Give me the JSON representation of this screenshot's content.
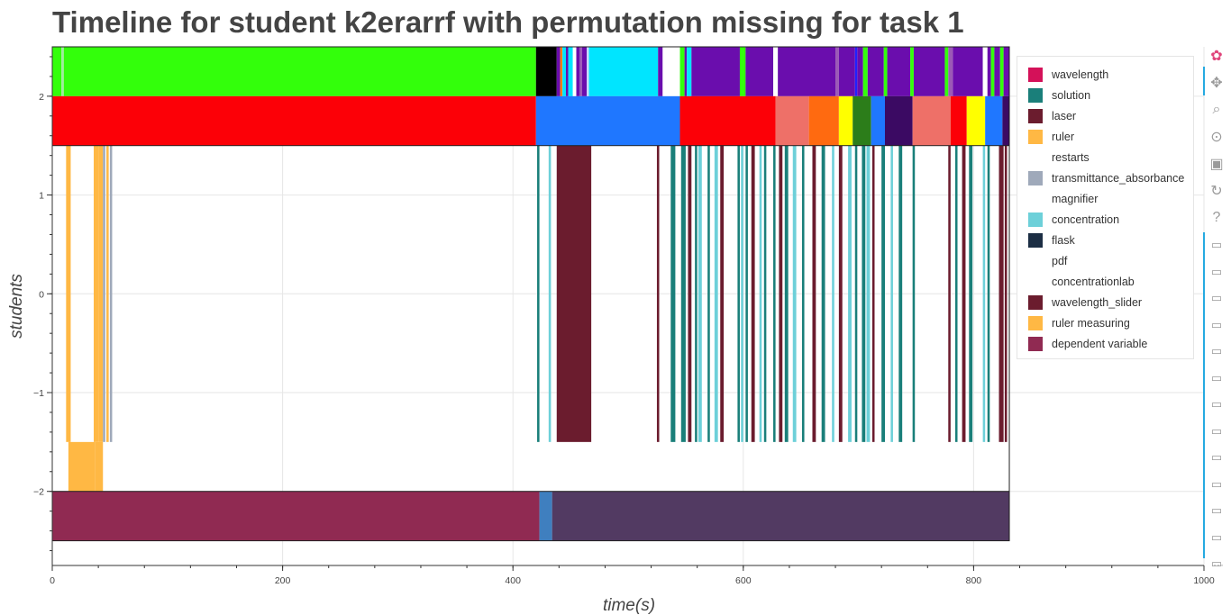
{
  "title": "Timeline for student k2erarrf with permutation missing for task 1",
  "chart_data": {
    "type": "timeline",
    "xlabel": "time(s)",
    "ylabel": "students",
    "xlim": [
      0,
      1000
    ],
    "ylim": [
      -2.75,
      2.5
    ],
    "x_ticks": [
      0,
      200,
      400,
      600,
      800,
      1000
    ],
    "y_ticks": [
      2,
      1,
      0,
      -1,
      -2
    ],
    "x_tick_labels": [
      "0",
      "200",
      "400",
      "600",
      "800",
      "1000"
    ],
    "y_tick_labels": [
      "2",
      "1",
      "0",
      "−1",
      "−2"
    ],
    "grid": true,
    "legend_position": "top-right",
    "legend": [
      {
        "label": "wavelength",
        "color": "#d41159"
      },
      {
        "label": "solution",
        "color": "#1a7f7a"
      },
      {
        "label": "laser",
        "color": "#6b1c2e"
      },
      {
        "label": "ruler",
        "color": "#ffb844"
      },
      {
        "label": "restarts",
        "color": "#ffffff"
      },
      {
        "label": "transmittance_absorbance",
        "color": "#9fa9ba"
      },
      {
        "label": "magnifier",
        "color": "#ffffff"
      },
      {
        "label": "concentration",
        "color": "#6dd0d9"
      },
      {
        "label": "flask",
        "color": "#1c2e44"
      },
      {
        "label": "pdf",
        "color": "#ffffff"
      },
      {
        "label": "concentrationlab",
        "color": "#ffffff"
      },
      {
        "label": "wavelength_slider",
        "color": "#6b1c2e"
      },
      {
        "label": "ruler measuring",
        "color": "#ffb844"
      },
      {
        "label": "dependent variable",
        "color": "#902a52"
      }
    ],
    "rows": [
      {
        "name": "top",
        "y": [
          2,
          2.5
        ],
        "segments": [
          {
            "x0": 0,
            "x1": 8,
            "color": "#33ff0b"
          },
          {
            "x0": 8,
            "x1": 10,
            "color": "#a0e8a0"
          },
          {
            "x0": 10,
            "x1": 420,
            "color": "#33ff0b"
          },
          {
            "x0": 420,
            "x1": 438,
            "color": "#000000"
          },
          {
            "x0": 438,
            "x1": 441,
            "color": "#6a0dad"
          },
          {
            "x0": 441,
            "x1": 443,
            "color": "#ff7f0e"
          },
          {
            "x0": 443,
            "x1": 446,
            "color": "#00e5ff"
          },
          {
            "x0": 446,
            "x1": 448,
            "color": "#6a0dad"
          },
          {
            "x0": 448,
            "x1": 452,
            "color": "#00e5ff"
          },
          {
            "x0": 452,
            "x1": 455,
            "color": "#ffffff"
          },
          {
            "x0": 455,
            "x1": 458,
            "color": "#6a0dad"
          },
          {
            "x0": 458,
            "x1": 460,
            "color": "#9b59b6"
          },
          {
            "x0": 460,
            "x1": 464,
            "color": "#6a0dad"
          },
          {
            "x0": 464,
            "x1": 466,
            "color": "#c8d8ff"
          },
          {
            "x0": 466,
            "x1": 526,
            "color": "#00e5ff"
          },
          {
            "x0": 526,
            "x1": 530,
            "color": "#6a0dad"
          },
          {
            "x0": 530,
            "x1": 545,
            "color": "#ffffff"
          },
          {
            "x0": 545,
            "x1": 549,
            "color": "#33ff0b"
          },
          {
            "x0": 549,
            "x1": 551,
            "color": "#6a0dad"
          },
          {
            "x0": 551,
            "x1": 555,
            "color": "#00e5ff"
          },
          {
            "x0": 555,
            "x1": 597,
            "color": "#6a0dad"
          },
          {
            "x0": 597,
            "x1": 602,
            "color": "#33ff0b"
          },
          {
            "x0": 602,
            "x1": 626,
            "color": "#6a0dad"
          },
          {
            "x0": 626,
            "x1": 630,
            "color": "#ffffff"
          },
          {
            "x0": 630,
            "x1": 680,
            "color": "#6a0dad"
          },
          {
            "x0": 680,
            "x1": 683,
            "color": "#9b59b6"
          },
          {
            "x0": 683,
            "x1": 697,
            "color": "#6a0dad"
          },
          {
            "x0": 697,
            "x1": 699,
            "color": "#2020ff"
          },
          {
            "x0": 699,
            "x1": 704,
            "color": "#6a0dad"
          },
          {
            "x0": 704,
            "x1": 708,
            "color": "#33ff0b"
          },
          {
            "x0": 708,
            "x1": 722,
            "color": "#6a0dad"
          },
          {
            "x0": 722,
            "x1": 725,
            "color": "#33ff0b"
          },
          {
            "x0": 725,
            "x1": 745,
            "color": "#6a0dad"
          },
          {
            "x0": 745,
            "x1": 748,
            "color": "#33ff0b"
          },
          {
            "x0": 748,
            "x1": 775,
            "color": "#6a0dad"
          },
          {
            "x0": 775,
            "x1": 778,
            "color": "#33ff0b"
          },
          {
            "x0": 778,
            "x1": 782,
            "color": "#9b59b6"
          },
          {
            "x0": 782,
            "x1": 808,
            "color": "#6a0dad"
          },
          {
            "x0": 808,
            "x1": 812,
            "color": "#ffffff"
          },
          {
            "x0": 812,
            "x1": 815,
            "color": "#6a0dad"
          },
          {
            "x0": 815,
            "x1": 818,
            "color": "#33ff0b"
          },
          {
            "x0": 818,
            "x1": 823,
            "color": "#6a0dad"
          },
          {
            "x0": 823,
            "x1": 826,
            "color": "#33ff0b"
          },
          {
            "x0": 826,
            "x1": 831,
            "color": "#6a0dad"
          }
        ]
      },
      {
        "name": "second",
        "y": [
          1.5,
          2
        ],
        "segments": [
          {
            "x0": 0,
            "x1": 420,
            "color": "#fc0007"
          },
          {
            "x0": 420,
            "x1": 545,
            "color": "#1f77ff"
          },
          {
            "x0": 545,
            "x1": 628,
            "color": "#fc0007"
          },
          {
            "x0": 628,
            "x1": 657,
            "color": "#ee7068"
          },
          {
            "x0": 657,
            "x1": 683,
            "color": "#ff6a10"
          },
          {
            "x0": 683,
            "x1": 695,
            "color": "#ffff00"
          },
          {
            "x0": 695,
            "x1": 711,
            "color": "#2c7d1a"
          },
          {
            "x0": 711,
            "x1": 723,
            "color": "#1f77ff"
          },
          {
            "x0": 723,
            "x1": 747,
            "color": "#3b0a63"
          },
          {
            "x0": 747,
            "x1": 780,
            "color": "#ee7068"
          },
          {
            "x0": 780,
            "x1": 794,
            "color": "#fc0007"
          },
          {
            "x0": 794,
            "x1": 810,
            "color": "#ffff00"
          },
          {
            "x0": 810,
            "x1": 825,
            "color": "#1f77ff"
          },
          {
            "x0": 825,
            "x1": 831,
            "color": "#3b0a63"
          }
        ]
      },
      {
        "name": "events",
        "y": [
          -1.5,
          1.5
        ],
        "segments": [
          {
            "x0": 12,
            "x1": 16,
            "color": "#ffb844"
          },
          {
            "x0": 36,
            "x1": 40,
            "color": "#ffb844"
          },
          {
            "x0": 40,
            "x1": 44,
            "color": "#ffb844"
          },
          {
            "x0": 44,
            "x1": 46,
            "color": "#9fa9ba"
          },
          {
            "x0": 47,
            "x1": 49,
            "color": "#ffb844"
          },
          {
            "x0": 50,
            "x1": 52,
            "color": "#9fa9ba"
          },
          {
            "x0": 421,
            "x1": 423,
            "color": "#1a7f7a"
          },
          {
            "x0": 431,
            "x1": 433,
            "color": "#6dd0d9"
          },
          {
            "x0": 438,
            "x1": 468,
            "color": "#6b1c2e"
          },
          {
            "x0": 525,
            "x1": 527,
            "color": "#6b1c2e"
          },
          {
            "x0": 537,
            "x1": 541,
            "color": "#1a7f7a"
          },
          {
            "x0": 546,
            "x1": 550,
            "color": "#1a7f7a"
          },
          {
            "x0": 552,
            "x1": 555,
            "color": "#6b1c2e"
          },
          {
            "x0": 558,
            "x1": 560,
            "color": "#1a7f7a"
          },
          {
            "x0": 561,
            "x1": 564,
            "color": "#6dd0d9"
          },
          {
            "x0": 569,
            "x1": 571,
            "color": "#1a7f7a"
          },
          {
            "x0": 575,
            "x1": 578,
            "color": "#6dd0d9"
          },
          {
            "x0": 580,
            "x1": 583,
            "color": "#6b1c2e"
          },
          {
            "x0": 595,
            "x1": 597,
            "color": "#1a7f7a"
          },
          {
            "x0": 598,
            "x1": 600,
            "color": "#6dd0d9"
          },
          {
            "x0": 602,
            "x1": 604,
            "color": "#1a7f7a"
          },
          {
            "x0": 607,
            "x1": 610,
            "color": "#6b1c2e"
          },
          {
            "x0": 614,
            "x1": 616,
            "color": "#6dd0d9"
          },
          {
            "x0": 618,
            "x1": 620,
            "color": "#1a7f7a"
          },
          {
            "x0": 626,
            "x1": 628,
            "color": "#1a7f7a"
          },
          {
            "x0": 631,
            "x1": 634,
            "color": "#6b1c2e"
          },
          {
            "x0": 636,
            "x1": 639,
            "color": "#1a7f7a"
          },
          {
            "x0": 643,
            "x1": 646,
            "color": "#6dd0d9"
          },
          {
            "x0": 651,
            "x1": 653,
            "color": "#1a7f7a"
          },
          {
            "x0": 660,
            "x1": 663,
            "color": "#6b1c2e"
          },
          {
            "x0": 668,
            "x1": 671,
            "color": "#1a7f7a"
          },
          {
            "x0": 677,
            "x1": 679,
            "color": "#6dd0d9"
          },
          {
            "x0": 683,
            "x1": 686,
            "color": "#6b1c2e"
          },
          {
            "x0": 691,
            "x1": 694,
            "color": "#6dd0d9"
          },
          {
            "x0": 697,
            "x1": 699,
            "color": "#1a7f7a"
          },
          {
            "x0": 703,
            "x1": 706,
            "color": "#1a7f7a"
          },
          {
            "x0": 707,
            "x1": 710,
            "color": "#6dd0d9"
          },
          {
            "x0": 712,
            "x1": 714,
            "color": "#6b1c2e"
          },
          {
            "x0": 720,
            "x1": 723,
            "color": "#1a7f7a"
          },
          {
            "x0": 728,
            "x1": 730,
            "color": "#6dd0d9"
          },
          {
            "x0": 735,
            "x1": 738,
            "color": "#1a7f7a"
          },
          {
            "x0": 747,
            "x1": 749,
            "color": "#1a7f7a"
          },
          {
            "x0": 778,
            "x1": 780,
            "color": "#6b1c2e"
          },
          {
            "x0": 784,
            "x1": 786,
            "color": "#1a7f7a"
          },
          {
            "x0": 790,
            "x1": 793,
            "color": "#6b1c2e"
          },
          {
            "x0": 796,
            "x1": 799,
            "color": "#1a7f7a"
          },
          {
            "x0": 808,
            "x1": 810,
            "color": "#6dd0d9"
          },
          {
            "x0": 812,
            "x1": 814,
            "color": "#1a7f7a"
          },
          {
            "x0": 822,
            "x1": 826,
            "color": "#6b1c2e"
          },
          {
            "x0": 827,
            "x1": 829,
            "color": "#6b1c2e"
          }
        ]
      },
      {
        "name": "ruler measuring",
        "y": [
          -2,
          -1.5
        ],
        "segments": [
          {
            "x0": 14,
            "x1": 37,
            "color": "#ffb844"
          },
          {
            "x0": 37,
            "x1": 44,
            "color": "#ffb844"
          }
        ]
      },
      {
        "name": "bottom",
        "y": [
          -2.5,
          -2
        ],
        "segments": [
          {
            "x0": 0,
            "x1": 423,
            "color": "#902a52"
          },
          {
            "x0": 423,
            "x1": 434,
            "color": "#3f7fbf"
          },
          {
            "x0": 434,
            "x1": 831,
            "color": "#523a62"
          }
        ]
      }
    ]
  },
  "toolbar": [
    {
      "name": "bokeh-logo-icon",
      "glyph": "✿"
    },
    {
      "name": "pan-icon",
      "glyph": "✥"
    },
    {
      "name": "box-zoom-icon",
      "glyph": "⌕"
    },
    {
      "name": "wheel-zoom-icon",
      "glyph": "⊙"
    },
    {
      "name": "save-icon",
      "glyph": "▣"
    },
    {
      "name": "reset-icon",
      "glyph": "↻"
    },
    {
      "name": "help-icon",
      "glyph": "?"
    },
    {
      "name": "hover-icon",
      "glyph": "▭"
    }
  ],
  "toolbar_more": "···"
}
